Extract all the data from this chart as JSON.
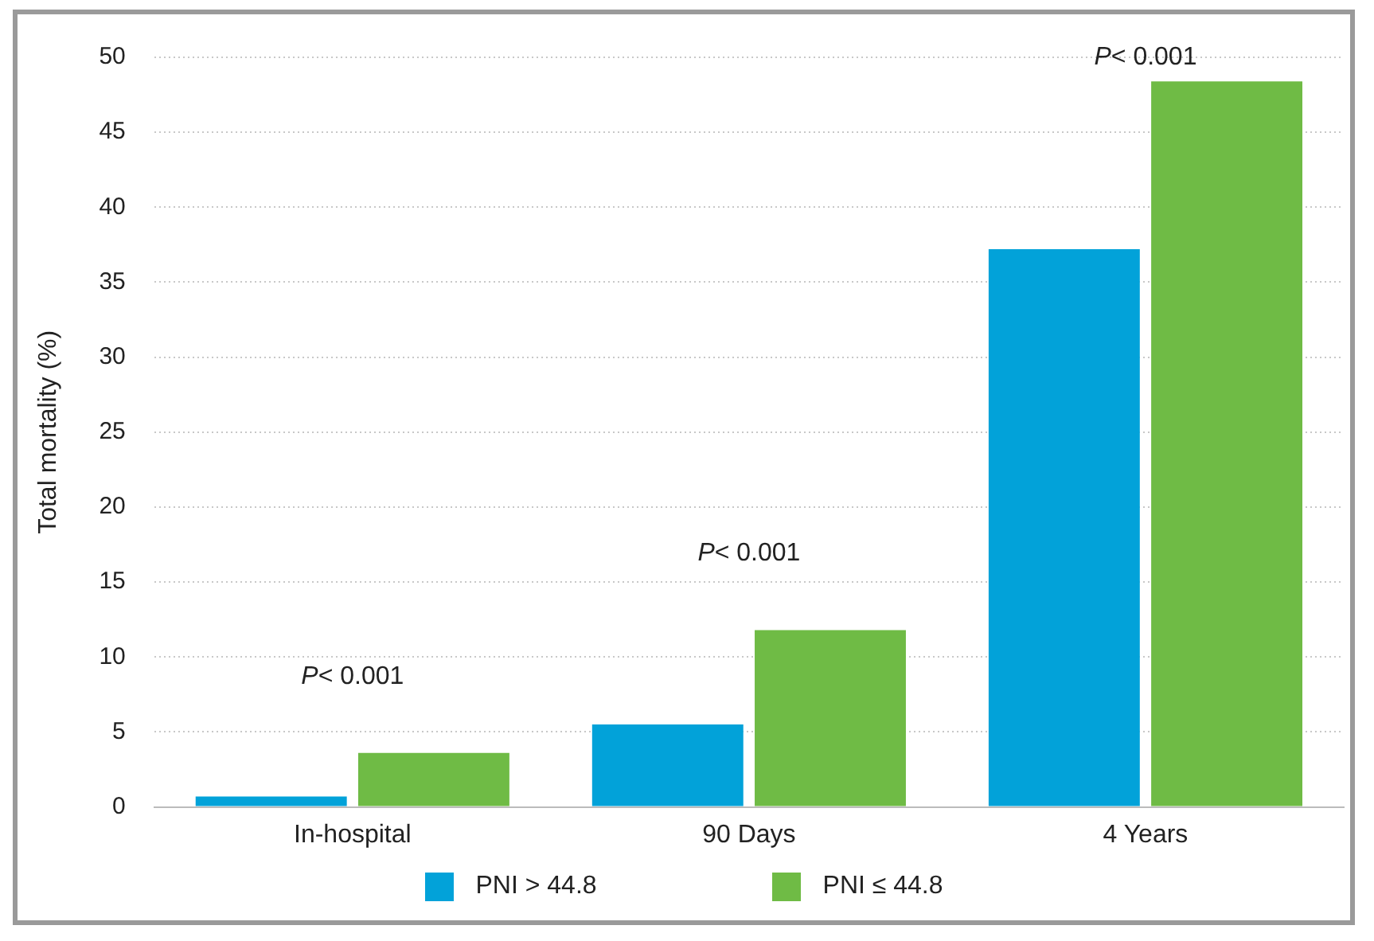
{
  "chart_data": {
    "type": "bar",
    "ylabel": "Total mortality (%)",
    "categories": [
      "In-hospital",
      "90 Days",
      "4 Years"
    ],
    "series": [
      {
        "name": "PNI > 44.8",
        "color": "#02a2d9",
        "values": [
          0.7,
          5.5,
          37.2
        ]
      },
      {
        "name": "PNI ≤ 44.8",
        "color": "#6fbb45",
        "values": [
          3.6,
          11.8,
          48.4
        ]
      }
    ],
    "ylim": [
      0,
      50
    ],
    "yticks": [
      0,
      5,
      10,
      15,
      20,
      25,
      30,
      35,
      40,
      45,
      50
    ],
    "grid": "y",
    "legend": "bottom",
    "annotations": [
      "P< 0.001",
      "P< 0.001",
      "P< 0.001"
    ]
  }
}
